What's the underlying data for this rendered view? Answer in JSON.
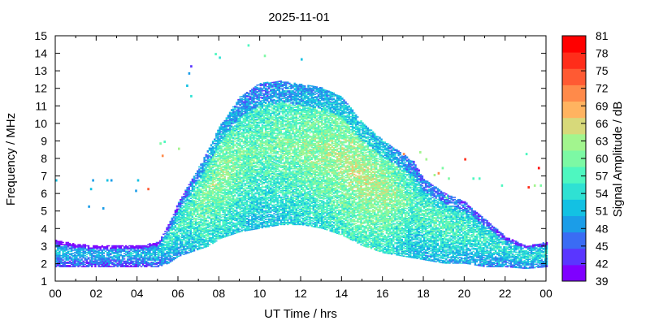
{
  "chart_data": {
    "type": "heatmap",
    "title": "2025-11-01",
    "xlabel": "UT Time / hrs",
    "ylabel": "Frequency / MHz",
    "xlim": [
      0,
      24
    ],
    "ylim": [
      1,
      15
    ],
    "x_ticks": [
      "00",
      "02",
      "04",
      "06",
      "08",
      "10",
      "12",
      "14",
      "16",
      "18",
      "20",
      "22",
      "00"
    ],
    "y_ticks": [
      "1",
      "2",
      "3",
      "4",
      "5",
      "6",
      "7",
      "8",
      "9",
      "10",
      "11",
      "12",
      "13",
      "14",
      "15"
    ],
    "colorbar": {
      "label": "Signal Amplitude / dB",
      "min": 39,
      "max": 81,
      "ticks": [
        "39",
        "42",
        "45",
        "48",
        "51",
        "54",
        "57",
        "60",
        "63",
        "66",
        "69",
        "72",
        "75",
        "78",
        "81"
      ],
      "colors": [
        "#7f00ff",
        "#5a36ff",
        "#3a6cf4",
        "#1b9de8",
        "#13c1e3",
        "#2fe1d3",
        "#4ef7c0",
        "#7cf9a4",
        "#a2f58e",
        "#d7d97a",
        "#ffb360",
        "#ff8a4a",
        "#ff5a33",
        "#ff2d1a",
        "#ff0000"
      ]
    },
    "profile": {
      "description_hours": [
        0,
        1,
        2,
        3,
        4,
        5,
        5.5,
        6,
        6.5,
        7,
        7.5,
        8,
        9,
        10,
        11,
        12,
        13,
        14,
        15,
        16,
        17,
        17.5,
        18,
        19,
        20,
        21,
        22,
        23,
        24
      ],
      "low_mhz": [
        1.8,
        1.8,
        1.8,
        1.8,
        1.8,
        1.8,
        2.0,
        2.4,
        2.6,
        2.8,
        3.0,
        3.4,
        3.8,
        4.0,
        4.2,
        4.2,
        4.0,
        3.6,
        3.0,
        2.6,
        2.4,
        2.3,
        2.2,
        2.0,
        2.0,
        1.8,
        1.8,
        1.7,
        1.8
      ],
      "high_mhz": [
        3.3,
        3.1,
        3.0,
        3.0,
        3.0,
        3.2,
        4.2,
        5.5,
        6.5,
        7.5,
        8.6,
        9.8,
        11.5,
        12.3,
        12.4,
        12.2,
        12.0,
        11.5,
        10.0,
        9.0,
        8.2,
        7.8,
        6.8,
        6.0,
        5.5,
        4.5,
        3.5,
        3.0,
        3.2
      ],
      "peak_db": [
        52,
        51,
        51,
        51,
        51,
        53,
        55,
        57,
        58,
        60,
        61,
        62,
        60,
        59,
        60,
        61,
        62,
        63,
        64,
        63,
        60,
        58,
        58,
        58,
        57,
        56,
        55,
        55,
        55
      ]
    }
  }
}
